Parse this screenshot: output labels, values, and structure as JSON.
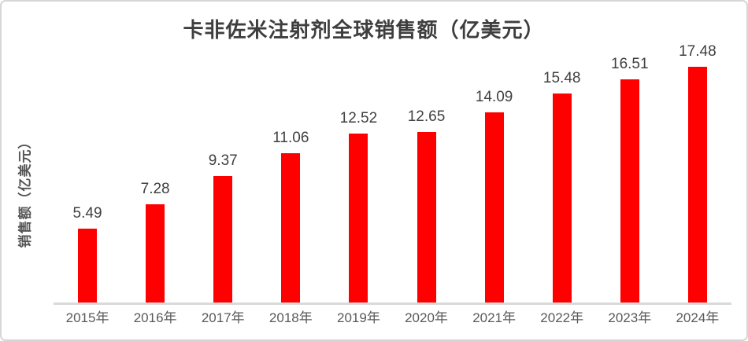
{
  "chart_data": {
    "type": "bar",
    "title": "卡非佐米注射剂全球销售额（亿美元）",
    "ylabel": "销售额（亿美元）",
    "xlabel": "",
    "categories": [
      "2015年",
      "2016年",
      "2017年",
      "2018年",
      "2019年",
      "2020年",
      "2021年",
      "2022年",
      "2023年",
      "2024年"
    ],
    "values": [
      5.49,
      7.28,
      9.37,
      11.06,
      12.52,
      12.65,
      14.09,
      15.48,
      16.51,
      17.48
    ],
    "value_labels": [
      "5.49",
      "7.28",
      "9.37",
      "11.06",
      "12.52",
      "12.65",
      "14.09",
      "15.48",
      "16.51",
      "17.48"
    ],
    "ylim": [
      0,
      18.8
    ],
    "grid": false,
    "legend": "none",
    "data_labels": "above-bars",
    "bar_color": "#ff0000",
    "axis_line_color": "#d9d9d9",
    "title_color": "#3e3e3e",
    "value_label_color": "#404040",
    "tick_label_color": "#595959"
  }
}
